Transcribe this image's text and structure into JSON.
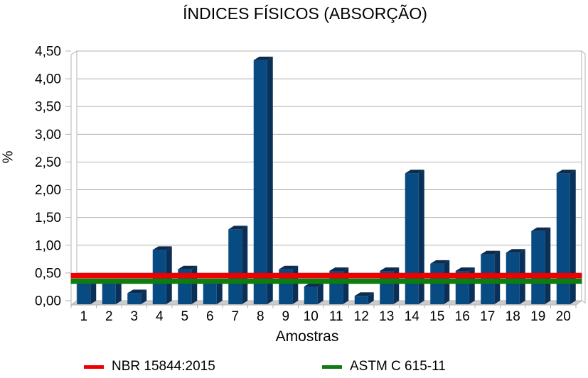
{
  "chart_data": {
    "type": "bar",
    "projection": "3d",
    "title": "ÍNDICES FÍSICOS (ABSORÇÃO)",
    "xlabel": "Amostras",
    "ylabel": "%",
    "categories": [
      "1",
      "2",
      "3",
      "4",
      "5",
      "6",
      "7",
      "8",
      "9",
      "10",
      "11",
      "12",
      "13",
      "14",
      "15",
      "16",
      "17",
      "18",
      "19",
      "20"
    ],
    "values": [
      0.38,
      0.38,
      0.2,
      0.98,
      0.63,
      0.38,
      1.35,
      4.4,
      0.63,
      0.32,
      0.6,
      0.15,
      0.6,
      2.36,
      0.73,
      0.6,
      0.9,
      0.93,
      1.32,
      2.36
    ],
    "reference_lines": [
      {
        "label": "NBR 15844:2015",
        "value": 0.5,
        "color": "#ee0000"
      },
      {
        "label": "ASTM C 615-11",
        "value": 0.4,
        "color": "#0e7c11"
      }
    ],
    "ylim": [
      0,
      4.5
    ],
    "ytick_step": 0.5,
    "ytick_labels": [
      "0,00",
      "0,50",
      "1,00",
      "1,50",
      "2,00",
      "2,50",
      "3,00",
      "3,50",
      "4,00",
      "4,50"
    ],
    "grid": true,
    "legend_position": "bottom"
  },
  "colors": {
    "bar_front": "#084a82",
    "bar_side": "#0a3058",
    "bar_top": "#0d2b4d",
    "grid": "#b3b3b3",
    "floor": "#cccccc",
    "wall": "#ffffff",
    "background": "#ffffff",
    "text": "#000000"
  }
}
